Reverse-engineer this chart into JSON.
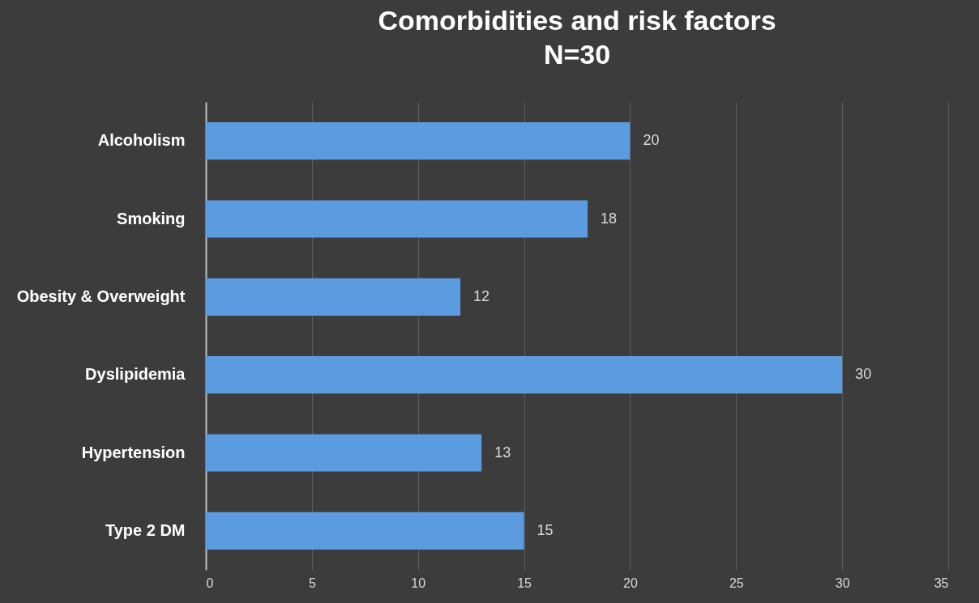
{
  "chart_data": {
    "type": "bar",
    "orientation": "horizontal",
    "title": "Comorbidities and risk factors",
    "subtitle": "N=30",
    "categories": [
      "Alcoholism",
      "Smoking",
      "Obesity & Overweight",
      "Dyslipidemia",
      "Hypertension",
      "Type 2 DM"
    ],
    "values": [
      20,
      18,
      12,
      30,
      13,
      15
    ],
    "color": "#5b9be0",
    "xlim": [
      0,
      35
    ],
    "xticks": [
      0,
      5,
      10,
      15,
      20,
      25,
      30,
      35
    ],
    "grid": "x",
    "data_labels": true
  }
}
